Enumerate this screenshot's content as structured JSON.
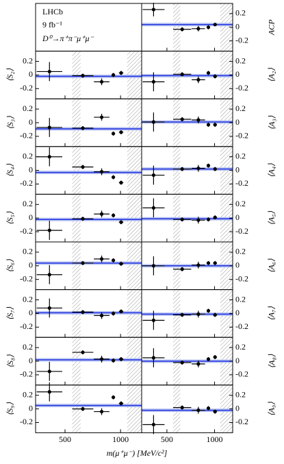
{
  "legend": {
    "experiment": "LHCb",
    "luminosity": "9 fb⁻¹",
    "decay": "D⁰→π⁺π⁻μ⁺μ⁻"
  },
  "x_label": "m(μ⁺μ⁻) [MeV/c²]",
  "excluded_regions": [
    [
      565,
      640
    ],
    [
      1060,
      1190
    ]
  ],
  "chart_data": [
    {
      "type": "scatter",
      "ylabel": "ACP",
      "x": [
        360,
        660,
        830,
        935,
        1005
      ],
      "xerr": [
        115,
        95,
        70,
        15,
        20
      ],
      "values": [
        0.26,
        -0.03,
        -0.02,
        0.0,
        0.04
      ],
      "errors": [
        0.1,
        0.03,
        0.04,
        0.03,
        0.02
      ],
      "fit": 0.04,
      "xlim": [
        235,
        1190
      ],
      "xticks": [
        500,
        1000
      ],
      "ylim": [
        -0.35,
        0.35
      ],
      "yticks": [
        -0.2,
        0,
        0.2
      ]
    },
    {
      "type": "scatter",
      "ylabel": "⟨S₂⟩",
      "x": [
        360,
        660,
        830,
        935,
        1005
      ],
      "xerr": [
        115,
        95,
        70,
        15,
        20
      ],
      "values": [
        0.05,
        -0.01,
        -0.1,
        0.0,
        0.03
      ],
      "errors": [
        0.14,
        0.03,
        0.05,
        0.03,
        0.03
      ],
      "fit": -0.02,
      "xlim": [
        235,
        1190
      ],
      "xticks": [
        500,
        1000
      ],
      "ylim": [
        -0.35,
        0.35
      ],
      "yticks": [
        -0.2,
        0,
        0.2
      ]
    },
    {
      "type": "scatter",
      "ylabel": "⟨S₃⟩",
      "x": [
        360,
        660,
        830,
        935,
        1005
      ],
      "xerr": [
        115,
        95,
        70,
        15,
        20
      ],
      "values": [
        -0.07,
        -0.08,
        0.08,
        -0.16,
        -0.14
      ],
      "errors": [
        0.14,
        0.03,
        0.05,
        0.03,
        0.03
      ],
      "fit": -0.09,
      "xlim": [
        235,
        1190
      ],
      "xticks": [
        500,
        1000
      ],
      "ylim": [
        -0.35,
        0.35
      ],
      "yticks": [
        -0.2,
        0,
        0.2
      ]
    },
    {
      "type": "scatter",
      "ylabel": "⟨S₄⟩",
      "x": [
        360,
        660,
        830,
        935,
        1005
      ],
      "xerr": [
        115,
        95,
        70,
        15,
        20
      ],
      "values": [
        0.2,
        0.05,
        -0.02,
        -0.1,
        -0.18
      ],
      "errors": [
        0.14,
        0.03,
        0.05,
        0.03,
        0.03
      ],
      "fit": -0.03,
      "xlim": [
        235,
        1190
      ],
      "xticks": [
        500,
        1000
      ],
      "ylim": [
        -0.35,
        0.35
      ],
      "yticks": [
        -0.2,
        0,
        0.2
      ]
    },
    {
      "type": "scatter",
      "ylabel": "⟨S₅⟩",
      "x": [
        360,
        660,
        830,
        935,
        1005
      ],
      "xerr": [
        115,
        95,
        70,
        15,
        20
      ],
      "values": [
        -0.18,
        -0.01,
        0.06,
        0.04,
        -0.06
      ],
      "errors": [
        0.14,
        0.03,
        0.05,
        0.03,
        0.03
      ],
      "fit": -0.02,
      "xlim": [
        235,
        1190
      ],
      "xticks": [
        500,
        1000
      ],
      "ylim": [
        -0.35,
        0.35
      ],
      "yticks": [
        -0.2,
        0,
        0.2
      ]
    },
    {
      "type": "scatter",
      "ylabel": "⟨S₆⟩",
      "x": [
        360,
        660,
        830,
        935,
        1005
      ],
      "xerr": [
        115,
        95,
        70,
        15,
        20
      ],
      "values": [
        -0.13,
        0.04,
        0.1,
        0.08,
        0.03
      ],
      "errors": [
        0.14,
        0.03,
        0.05,
        0.03,
        0.03
      ],
      "fit": 0.04,
      "xlim": [
        235,
        1190
      ],
      "xticks": [
        500,
        1000
      ],
      "ylim": [
        -0.35,
        0.35
      ],
      "yticks": [
        -0.2,
        0,
        0.2
      ]
    },
    {
      "type": "scatter",
      "ylabel": "⟨S₇⟩",
      "x": [
        360,
        660,
        830,
        935,
        1005
      ],
      "xerr": [
        115,
        95,
        70,
        15,
        20
      ],
      "values": [
        0.08,
        0.02,
        -0.03,
        0.0,
        0.03
      ],
      "errors": [
        0.14,
        0.03,
        0.05,
        0.03,
        0.03
      ],
      "fit": 0.01,
      "xlim": [
        235,
        1190
      ],
      "xticks": [
        500,
        1000
      ],
      "ylim": [
        -0.35,
        0.35
      ],
      "yticks": [
        -0.2,
        0,
        0.2
      ]
    },
    {
      "type": "scatter",
      "ylabel": "⟨S₈⟩",
      "x": [
        360,
        660,
        830,
        935,
        1005
      ],
      "xerr": [
        115,
        95,
        70,
        15,
        20
      ],
      "values": [
        -0.15,
        0.13,
        0.03,
        0.01,
        0.03
      ],
      "errors": [
        0.14,
        0.03,
        0.05,
        0.03,
        0.03
      ],
      "fit": 0.02,
      "xlim": [
        235,
        1190
      ],
      "xticks": [
        500,
        1000
      ],
      "ylim": [
        -0.35,
        0.35
      ],
      "yticks": [
        -0.2,
        0,
        0.2
      ]
    },
    {
      "type": "scatter",
      "ylabel": "⟨S₉⟩",
      "x": [
        360,
        660,
        830,
        935,
        1005
      ],
      "xerr": [
        115,
        95,
        70,
        15,
        20
      ],
      "values": [
        0.25,
        0.0,
        -0.04,
        0.17,
        0.08
      ],
      "errors": [
        0.14,
        0.03,
        0.05,
        0.03,
        0.03
      ],
      "fit": 0.05,
      "xlim": [
        235,
        1190
      ],
      "xticks": [
        500,
        1000
      ],
      "ylim": [
        -0.35,
        0.35
      ],
      "yticks": [
        -0.2,
        0,
        0.2
      ]
    },
    {
      "type": "scatter",
      "ylabel": "⟨A₂⟩",
      "x": [
        360,
        660,
        830,
        935,
        1005
      ],
      "xerr": [
        115,
        95,
        70,
        15,
        20
      ],
      "values": [
        -0.1,
        0.01,
        -0.07,
        0.03,
        -0.02
      ],
      "errors": [
        0.14,
        0.03,
        0.05,
        0.03,
        0.03
      ],
      "fit": -0.01,
      "xlim": [
        235,
        1190
      ],
      "xticks": [
        500,
        1000
      ],
      "ylim": [
        -0.35,
        0.35
      ],
      "yticks": [
        -0.2,
        0,
        0.2
      ]
    },
    {
      "type": "scatter",
      "ylabel": "⟨A₃⟩",
      "x": [
        360,
        660,
        830,
        935,
        1005
      ],
      "xerr": [
        115,
        95,
        70,
        15,
        20
      ],
      "values": [
        0.01,
        0.05,
        0.04,
        -0.03,
        -0.03
      ],
      "errors": [
        0.14,
        0.03,
        0.05,
        0.03,
        0.03
      ],
      "fit": 0.01,
      "xlim": [
        235,
        1190
      ],
      "xticks": [
        500,
        1000
      ],
      "ylim": [
        -0.35,
        0.35
      ],
      "yticks": [
        -0.2,
        0,
        0.2
      ]
    },
    {
      "type": "scatter",
      "ylabel": "⟨A₄⟩",
      "x": [
        360,
        660,
        830,
        935,
        1005
      ],
      "xerr": [
        115,
        95,
        70,
        15,
        20
      ],
      "values": [
        -0.07,
        0.02,
        0.03,
        0.07,
        0.02
      ],
      "errors": [
        0.14,
        0.03,
        0.05,
        0.03,
        0.03
      ],
      "fit": 0.02,
      "xlim": [
        235,
        1190
      ],
      "xticks": [
        500,
        1000
      ],
      "ylim": [
        -0.35,
        0.35
      ],
      "yticks": [
        -0.2,
        0,
        0.2
      ]
    },
    {
      "type": "scatter",
      "ylabel": "⟨A₅⟩",
      "x": [
        360,
        660,
        830,
        935,
        1005
      ],
      "xerr": [
        115,
        95,
        70,
        15,
        20
      ],
      "values": [
        0.15,
        -0.02,
        -0.03,
        -0.02,
        0.01
      ],
      "errors": [
        0.14,
        0.03,
        0.05,
        0.03,
        0.03
      ],
      "fit": -0.01,
      "xlim": [
        235,
        1190
      ],
      "xticks": [
        500,
        1000
      ],
      "ylim": [
        -0.35,
        0.35
      ],
      "yticks": [
        -0.2,
        0,
        0.2
      ]
    },
    {
      "type": "scatter",
      "ylabel": "⟨A₆⟩",
      "x": [
        360,
        660,
        830,
        935,
        1005
      ],
      "xerr": [
        115,
        95,
        70,
        15,
        20
      ],
      "values": [
        0.0,
        -0.05,
        0.01,
        0.04,
        0.04
      ],
      "errors": [
        0.14,
        0.03,
        0.05,
        0.03,
        0.03
      ],
      "fit": 0.0,
      "xlim": [
        235,
        1190
      ],
      "xticks": [
        500,
        1000
      ],
      "ylim": [
        -0.35,
        0.35
      ],
      "yticks": [
        -0.2,
        0,
        0.2
      ]
    },
    {
      "type": "scatter",
      "ylabel": "⟨A₇⟩",
      "x": [
        360,
        660,
        830,
        935,
        1005
      ],
      "xerr": [
        115,
        95,
        70,
        15,
        20
      ],
      "values": [
        -0.1,
        -0.02,
        -0.01,
        0.04,
        -0.02
      ],
      "errors": [
        0.14,
        0.03,
        0.05,
        0.03,
        0.03
      ],
      "fit": -0.01,
      "xlim": [
        235,
        1190
      ],
      "xticks": [
        500,
        1000
      ],
      "ylim": [
        -0.35,
        0.35
      ],
      "yticks": [
        -0.2,
        0,
        0.2
      ]
    },
    {
      "type": "scatter",
      "ylabel": "⟨A₈⟩",
      "x": [
        360,
        660,
        830,
        935,
        1005
      ],
      "xerr": [
        115,
        95,
        70,
        15,
        20
      ],
      "values": [
        0.05,
        -0.02,
        -0.04,
        0.03,
        0.06
      ],
      "errors": [
        0.14,
        0.03,
        0.05,
        0.03,
        0.03
      ],
      "fit": 0.0,
      "xlim": [
        235,
        1190
      ],
      "xticks": [
        500,
        1000
      ],
      "ylim": [
        -0.35,
        0.35
      ],
      "yticks": [
        -0.2,
        0,
        0.2
      ]
    },
    {
      "type": "scatter",
      "ylabel": "⟨A₉⟩",
      "x": [
        360,
        660,
        830,
        935,
        1005
      ],
      "xerr": [
        115,
        95,
        70,
        15,
        20
      ],
      "values": [
        -0.23,
        0.02,
        -0.02,
        0.01,
        -0.04
      ],
      "errors": [
        0.14,
        0.03,
        0.05,
        0.03,
        0.03
      ],
      "fit": -0.02,
      "xlim": [
        235,
        1190
      ],
      "xticks": [
        500,
        1000
      ],
      "ylim": [
        -0.35,
        0.35
      ],
      "yticks": [
        -0.2,
        0,
        0.2
      ]
    }
  ]
}
